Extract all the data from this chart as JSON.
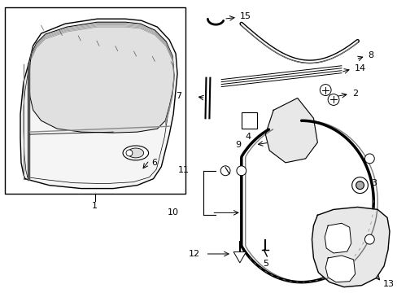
{
  "background_color": "#ffffff",
  "line_color": "#000000",
  "text_color": "#000000",
  "fig_width": 4.89,
  "fig_height": 3.6,
  "dpi": 100,
  "font_size": 8
}
